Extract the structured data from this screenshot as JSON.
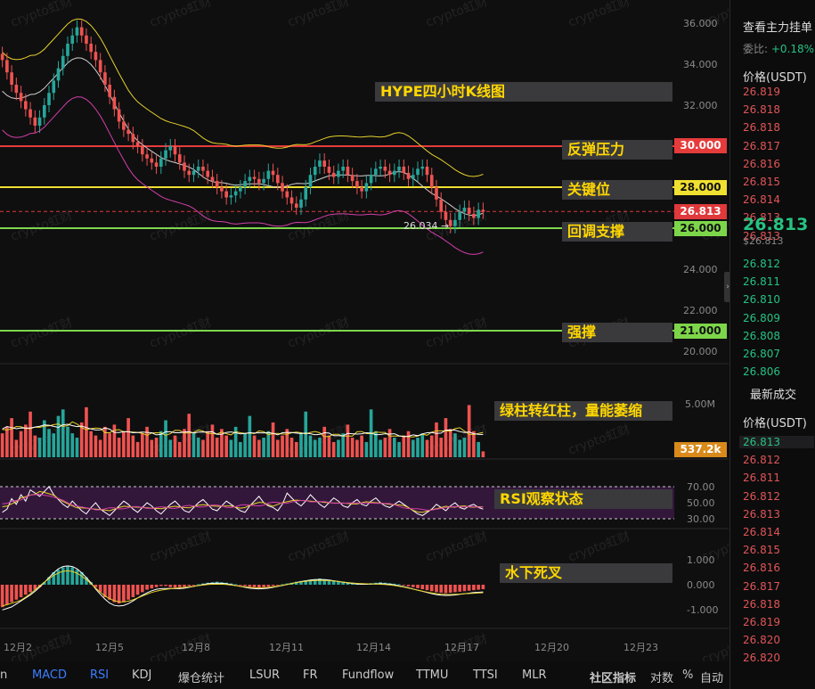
{
  "chart_data": [
    {
      "type": "candlestick",
      "title": "HYPE四小时K线图",
      "ylim": [
        19.8,
        36.6
      ],
      "y_ticks": [
        "36.000",
        "34.000",
        "32.000",
        "30.000",
        "28.000",
        "26.000",
        "24.000",
        "22.000",
        "20.000"
      ],
      "x_ticks": [
        "12月2",
        "12月5",
        "12月8",
        "12月11",
        "12月14",
        "12月17",
        "12月20",
        "12月23"
      ],
      "close_series": [
        34.2,
        33.6,
        33.0,
        32.6,
        32.2,
        31.8,
        31.4,
        31.0,
        31.4,
        32.0,
        32.6,
        33.2,
        33.8,
        34.4,
        35.0,
        35.4,
        35.8,
        35.4,
        35.0,
        34.6,
        34.2,
        33.6,
        33.0,
        32.4,
        31.8,
        31.2,
        30.8,
        30.6,
        30.2,
        30.0,
        29.6,
        29.4,
        29.2,
        29.0,
        29.4,
        29.8,
        30.0,
        29.6,
        29.2,
        28.8,
        28.6,
        28.8,
        29.0,
        28.8,
        28.5,
        28.3,
        28.0,
        27.8,
        27.5,
        27.6,
        27.8,
        28.0,
        28.3,
        28.5,
        28.4,
        28.2,
        28.4,
        28.8,
        28.6,
        28.2,
        27.8,
        27.5,
        27.2,
        27.0,
        27.4,
        28.0,
        28.6,
        29.0,
        29.3,
        29.0,
        28.7,
        28.5,
        28.8,
        29.0,
        28.6,
        28.3,
        28.0,
        27.8,
        28.2,
        28.6,
        28.9,
        29.0,
        28.8,
        28.6,
        28.8,
        29.0,
        28.7,
        28.4,
        28.6,
        28.9,
        29.0,
        28.6,
        28.0,
        27.4,
        26.8,
        26.4,
        26.1,
        26.4,
        26.8,
        27.0,
        26.7,
        26.5,
        26.9,
        26.8
      ],
      "lines": [
        {
          "label": "反弹压力",
          "value": 30.0,
          "price_label": "30.000",
          "color": "#e63b3b"
        },
        {
          "label": "关键位",
          "value": 28.0,
          "price_label": "28.000",
          "color": "#f0e030"
        },
        {
          "label": "回调支撑",
          "value": 26.0,
          "price_label": "26.000",
          "color": "#7dd64a"
        },
        {
          "label": "强撑",
          "value": 21.0,
          "price_label": "21.000",
          "color": "#7dd64a"
        }
      ],
      "last_price": {
        "value": 26.813,
        "label": "26.813",
        "color": "#e0393b"
      },
      "low_marker": {
        "value": 26.034,
        "label": "26.034 →"
      }
    },
    {
      "type": "bar",
      "title": "",
      "annotation": "绿柱转红柱，量能萎缩",
      "y_ticks": [
        "5.00M"
      ],
      "current_label": "537.2k",
      "volume_series": [
        2.2,
        2.8,
        3.6,
        1.6,
        2.4,
        3.0,
        4.2,
        2.0,
        1.8,
        3.4,
        2.6,
        2.2,
        3.8,
        4.4,
        2.8,
        2.2,
        1.8,
        3.2,
        4.6,
        2.4,
        2.0,
        1.6,
        2.8,
        2.2,
        3.0,
        1.8,
        2.4,
        3.6,
        2.0,
        1.4,
        2.2,
        2.8,
        1.6,
        1.8,
        2.4,
        3.4,
        1.6,
        2.0,
        1.4,
        2.6,
        4.0,
        2.2,
        1.8,
        1.6,
        2.4,
        3.0,
        1.8,
        2.6,
        2.0,
        1.6,
        2.8,
        1.4,
        2.2,
        3.8,
        2.0,
        1.6,
        1.8,
        2.4,
        3.2,
        1.6,
        2.0,
        2.6,
        1.8,
        1.4,
        2.2,
        4.2,
        2.0,
        1.6,
        1.8,
        2.8,
        2.0,
        1.4,
        1.6,
        2.2,
        3.0,
        1.8,
        1.6,
        2.0,
        1.4,
        4.4,
        2.4,
        1.6,
        1.8,
        2.6,
        1.8,
        1.4,
        2.0,
        2.4,
        1.6,
        1.8,
        2.2,
        1.6,
        2.0,
        3.2,
        1.8,
        3.6,
        2.6,
        2.2,
        1.6,
        1.8,
        4.8,
        2.4,
        1.4,
        0.54
      ]
    },
    {
      "type": "line",
      "title": "",
      "annotation": "RSI观察状态",
      "y_ticks": [
        "70.00",
        "50.00",
        "30.00"
      ],
      "ylim": [
        25,
        75
      ],
      "rsi_series": [
        38,
        42,
        55,
        48,
        60,
        52,
        66,
        62,
        58,
        64,
        70,
        60,
        54,
        48,
        44,
        52,
        46,
        40,
        36,
        44,
        50,
        42,
        38,
        34,
        40,
        46,
        52,
        48,
        42,
        38,
        44,
        50,
        46,
        40,
        36,
        42,
        48,
        52,
        46,
        40,
        38,
        44,
        50,
        54,
        48,
        42,
        40,
        46,
        52,
        48,
        44,
        40,
        38,
        46,
        52,
        58,
        50,
        46,
        44,
        40,
        48,
        62,
        56,
        50,
        46,
        52,
        60,
        54,
        48,
        44,
        50,
        56,
        52,
        46,
        44,
        50,
        54,
        48,
        46,
        52,
        56,
        50,
        46,
        44,
        48,
        52,
        48,
        44,
        40,
        36,
        34,
        38,
        42,
        48,
        44,
        40,
        46,
        50,
        44,
        42,
        46,
        48,
        44,
        42
      ]
    },
    {
      "type": "bar",
      "title": "",
      "annotation": "水下死叉",
      "y_ticks": [
        "1.000",
        "0.000",
        "-1.000"
      ],
      "ylim": [
        -1.35,
        1.3
      ],
      "macd_hist": [
        -0.9,
        -0.8,
        -0.7,
        -0.6,
        -0.5,
        -0.4,
        -0.3,
        -0.2,
        -0.1,
        0.1,
        0.3,
        0.5,
        0.6,
        0.7,
        0.75,
        0.7,
        0.6,
        0.5,
        0.3,
        0.1,
        -0.1,
        -0.3,
        -0.5,
        -0.6,
        -0.7,
        -0.75,
        -0.7,
        -0.6,
        -0.5,
        -0.4,
        -0.3,
        -0.2,
        -0.15,
        -0.1,
        -0.05,
        -0.05,
        -0.1,
        -0.12,
        -0.1,
        -0.08,
        -0.05,
        -0.02,
        0.02,
        0.05,
        0.08,
        0.1,
        0.12,
        0.1,
        0.08,
        0.05,
        0.02,
        -0.02,
        -0.05,
        -0.08,
        -0.1,
        -0.12,
        -0.1,
        -0.08,
        -0.05,
        -0.02,
        0.02,
        0.05,
        0.08,
        0.12,
        0.15,
        0.18,
        0.2,
        0.22,
        0.25,
        0.22,
        0.2,
        0.18,
        0.15,
        0.12,
        0.1,
        0.08,
        0.06,
        0.05,
        0.04,
        0.06,
        0.08,
        0.1,
        0.08,
        0.06,
        0.04,
        0.02,
        -0.02,
        -0.06,
        -0.1,
        -0.14,
        -0.18,
        -0.22,
        -0.26,
        -0.3,
        -0.32,
        -0.34,
        -0.32,
        -0.3,
        -0.28,
        -0.26,
        -0.24,
        -0.22,
        -0.2,
        -0.18
      ]
    }
  ],
  "right_panel": {
    "header": "查看主力挂单",
    "ratio_label": "委比:",
    "ratio_value": "+0.18%",
    "col_header": "价格(USDT)",
    "asks": [
      "26.819",
      "26.818",
      "26.818",
      "26.817",
      "26.816",
      "26.815",
      "26.814",
      "26.813",
      "26.813"
    ],
    "last": "26.813",
    "last_sub": "$26.813",
    "bids": [
      "26.812",
      "26.811",
      "26.810",
      "26.809",
      "26.808",
      "26.807",
      "26.806"
    ],
    "trades_header": "最新成交",
    "trades_col": "价格(USDT)",
    "trades": [
      "26.813",
      "26.812",
      "26.811",
      "26.812",
      "26.813",
      "26.814",
      "26.815",
      "26.816",
      "26.817",
      "26.818",
      "26.819",
      "26.820",
      "26.820"
    ]
  },
  "tabs": [
    "n",
    "MACD",
    "RSI",
    "KDJ",
    "爆仓统计",
    "LSUR",
    "FR",
    "Fundflow",
    "TTMU",
    "TTSI",
    "MLR",
    "社区指标",
    "对数",
    "%",
    "自动"
  ],
  "watermark": "crypto虹财",
  "colors": {
    "up": "#26a69a",
    "down": "#ef5350",
    "accent": "#3d7eff"
  }
}
